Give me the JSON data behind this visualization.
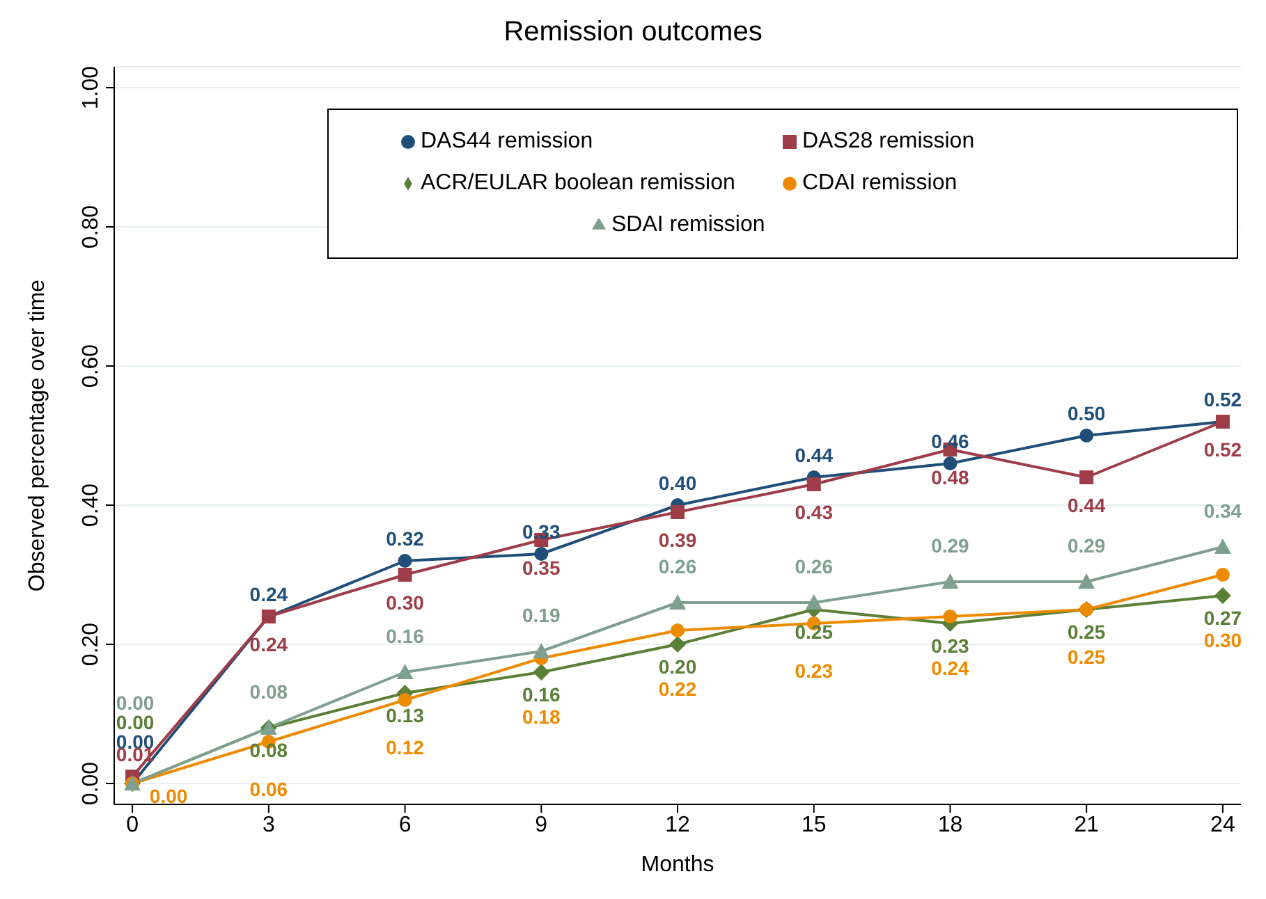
{
  "chart_data": {
    "type": "line",
    "title": "Remission outcomes",
    "xlabel": "Months",
    "ylabel": "Observed percentage over time",
    "x": [
      0,
      3,
      6,
      9,
      12,
      15,
      18,
      21,
      24
    ],
    "series": [
      {
        "name": "DAS44 remission",
        "color": "#1f4e79",
        "marker": "circle",
        "values": [
          0.0,
          0.24,
          0.32,
          0.33,
          0.4,
          0.44,
          0.46,
          0.5,
          0.52
        ],
        "value_labels": [
          "0.00",
          "0.24",
          "0.32",
          "0.33",
          "0.40",
          "0.44",
          "0.46",
          "0.50",
          "0.52"
        ]
      },
      {
        "name": "DAS28 remission",
        "color": "#9e3d47",
        "marker": "square",
        "values": [
          0.01,
          0.24,
          0.3,
          0.35,
          0.39,
          0.43,
          0.48,
          0.44,
          0.52
        ],
        "value_labels": [
          "0.01",
          "0.24",
          "0.30",
          "0.35",
          "0.39",
          "0.43",
          "0.48",
          "0.44",
          "0.52"
        ]
      },
      {
        "name": "ACR/EULAR boolean remission",
        "color": "#5a7f36",
        "marker": "diamond",
        "values": [
          0.0,
          0.08,
          0.13,
          0.16,
          0.2,
          0.25,
          0.23,
          0.25,
          0.27
        ],
        "value_labels": [
          "0.00",
          "0.08",
          "0.13",
          "0.16",
          "0.20",
          "0.25",
          "0.23",
          "0.25",
          "0.27"
        ]
      },
      {
        "name": "CDAI remission",
        "color": "#ed8b00",
        "marker": "circle",
        "values": [
          0.0,
          0.06,
          0.12,
          0.18,
          0.22,
          0.23,
          0.24,
          0.25,
          0.3
        ],
        "value_labels": [
          "0.00",
          "0.06",
          "0.12",
          "0.18",
          "0.22",
          "0.23",
          "0.24",
          "0.25",
          "0.30"
        ]
      },
      {
        "name": "SDAI remission",
        "color": "#7f9f90",
        "marker": "triangle",
        "values": [
          0.0,
          0.08,
          0.16,
          0.19,
          0.26,
          0.26,
          0.29,
          0.29,
          0.34
        ],
        "value_labels": [
          "0.00",
          "0.08",
          "0.16",
          "0.19",
          "0.26",
          "0.26",
          "0.29",
          "0.29",
          "0.34"
        ]
      }
    ],
    "xlim": [
      -0.4,
      24.4
    ],
    "xticks": [
      0,
      3,
      6,
      9,
      12,
      15,
      18,
      21,
      24
    ],
    "ylim": [
      -0.03,
      1.03
    ],
    "yticks": [
      {
        "value": 0,
        "label": "0.00"
      },
      {
        "value": 0.2,
        "label": "0.20"
      },
      {
        "value": 0.4,
        "label": "0.40"
      },
      {
        "value": 0.6,
        "label": "0.60"
      },
      {
        "value": 0.8,
        "label": "0.80"
      },
      {
        "value": 1,
        "label": "1.00"
      }
    ],
    "grid": "y",
    "legend": "top right",
    "line_style": "solid"
  }
}
